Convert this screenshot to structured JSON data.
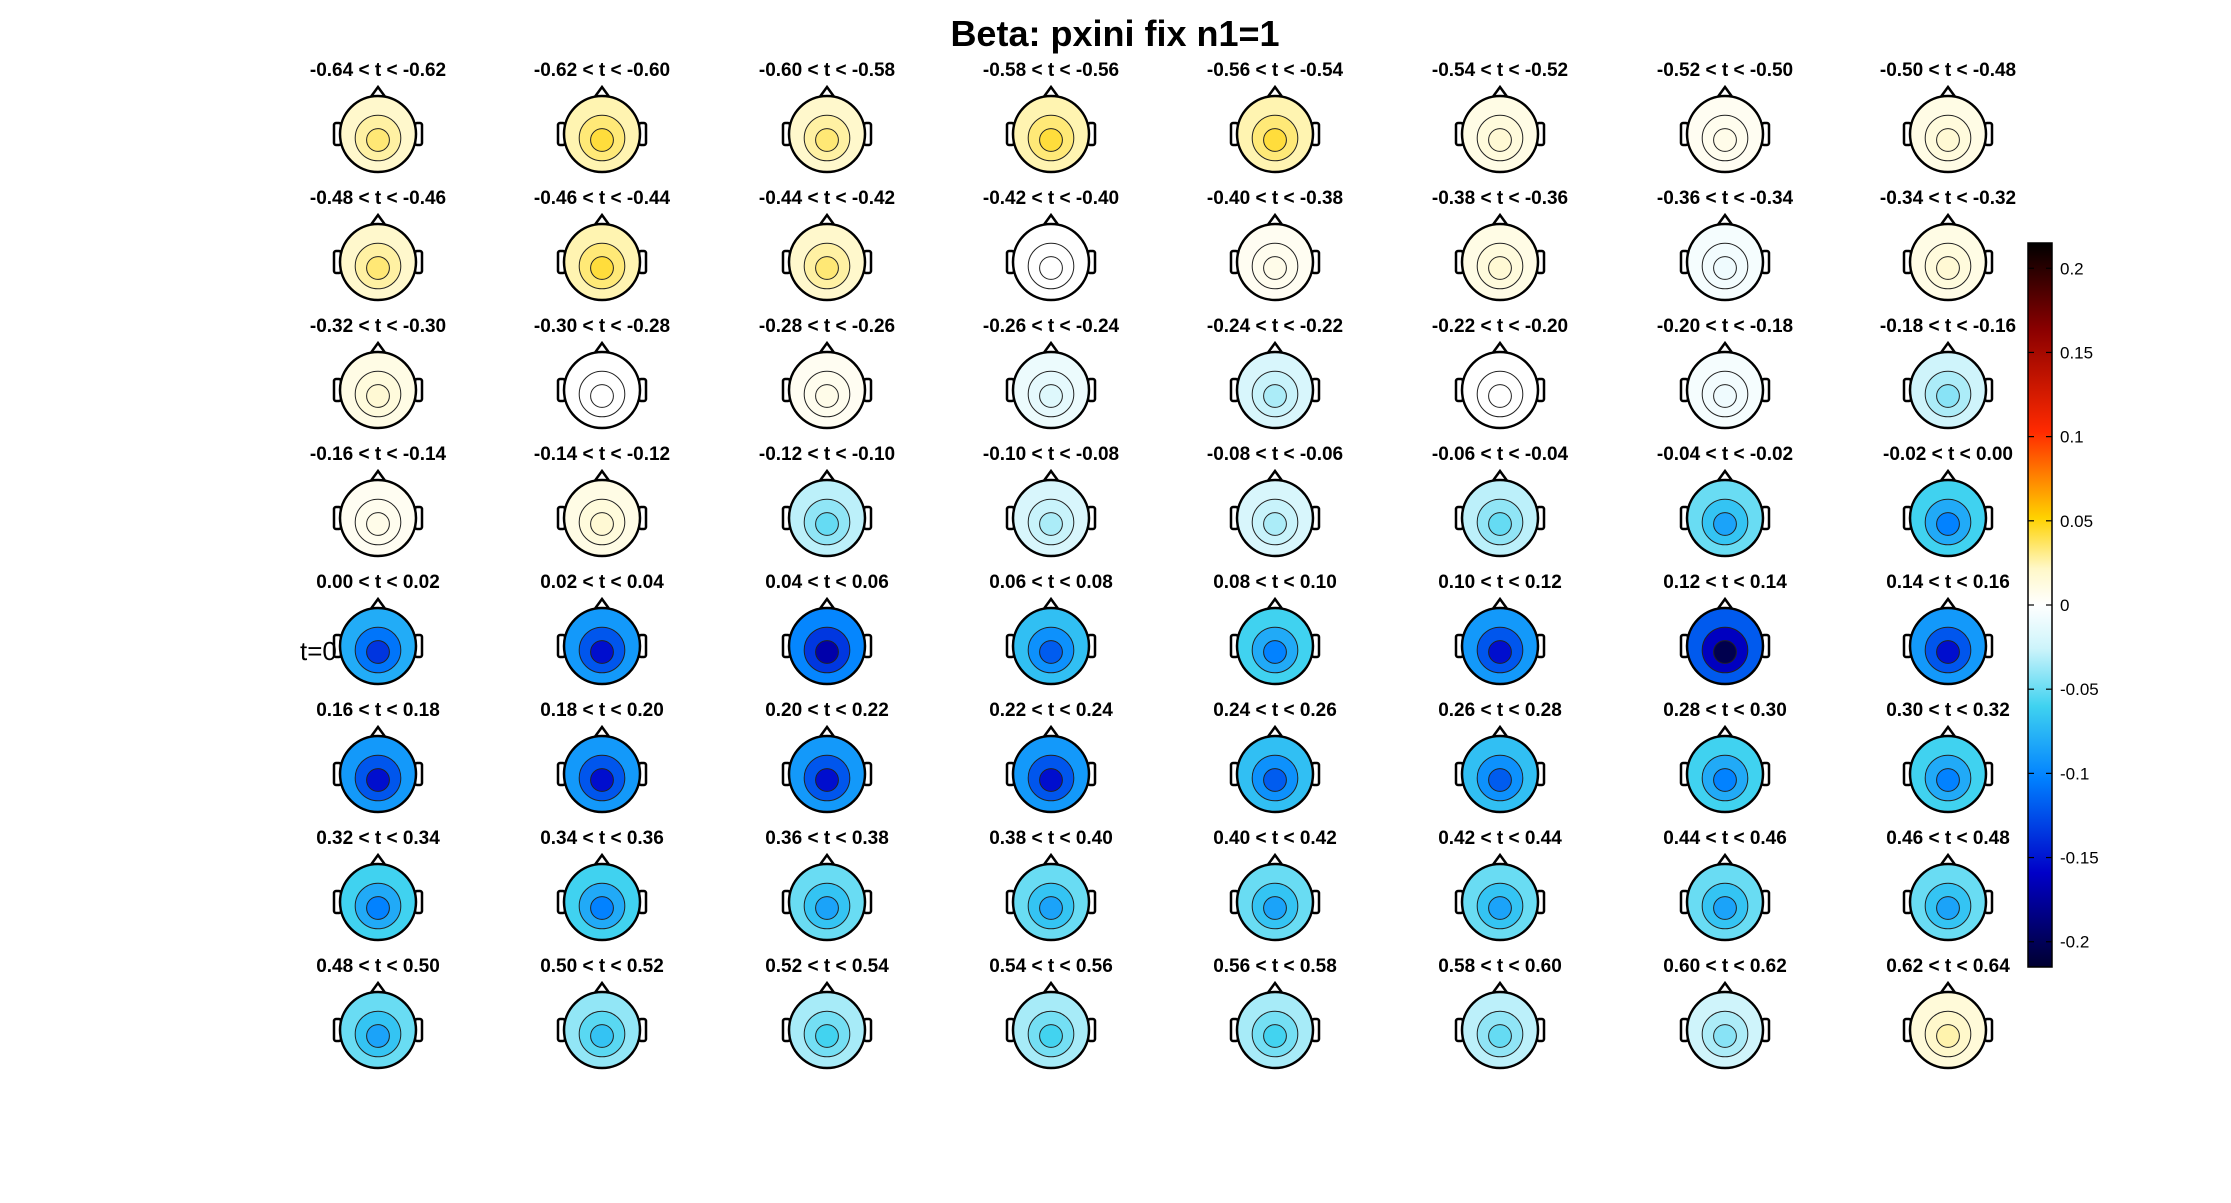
{
  "chart_data": {
    "type": "heatmap",
    "title": "Beta: pxini fix  n1=1",
    "subplot_titles": [
      "-0.64 < t < -0.62",
      "-0.62 < t < -0.60",
      "-0.60 < t < -0.58",
      "-0.58 < t < -0.56",
      "-0.56 < t < -0.54",
      "-0.54 < t < -0.52",
      "-0.52 < t < -0.50",
      "-0.50 < t < -0.48",
      "-0.48 < t < -0.46",
      "-0.46 < t < -0.44",
      "-0.44 < t < -0.42",
      "-0.42 < t < -0.40",
      "-0.40 < t < -0.38",
      "-0.38 < t < -0.36",
      "-0.36 < t < -0.34",
      "-0.34 < t < -0.32",
      "-0.32 < t < -0.30",
      "-0.30 < t < -0.28",
      "-0.28 < t < -0.26",
      "-0.26 < t < -0.24",
      "-0.24 < t < -0.22",
      "-0.22 < t < -0.20",
      "-0.20 < t < -0.18",
      "-0.18 < t < -0.16",
      "-0.16 < t < -0.14",
      "-0.14 < t < -0.12",
      "-0.12 < t < -0.10",
      "-0.10 < t < -0.08",
      "-0.08 < t < -0.06",
      "-0.06 < t < -0.04",
      "-0.04 < t < -0.02",
      "-0.02 < t < 0.00",
      "0.00 < t < 0.02",
      "0.02 < t < 0.04",
      "0.04 < t < 0.06",
      "0.06 < t < 0.08",
      "0.08 < t < 0.10",
      "0.10 < t < 0.12",
      "0.12 < t < 0.14",
      "0.14 < t < 0.16",
      "0.16 < t < 0.18",
      "0.18 < t < 0.20",
      "0.20 < t < 0.22",
      "0.22 < t < 0.24",
      "0.24 < t < 0.26",
      "0.26 < t < 0.28",
      "0.28 < t < 0.30",
      "0.30 < t < 0.32",
      "0.32 < t < 0.34",
      "0.34 < t < 0.36",
      "0.36 < t < 0.38",
      "0.38 < t < 0.40",
      "0.40 < t < 0.42",
      "0.42 < t < 0.44",
      "0.44 < t < 0.46",
      "0.46 < t < 0.48",
      "0.48 < t < 0.50",
      "0.50 < t < 0.52",
      "0.52 < t < 0.54",
      "0.54 < t < 0.56",
      "0.56 < t < 0.58",
      "0.58 < t < 0.60",
      "0.60 < t < 0.62",
      "0.62 < t < 0.64"
    ],
    "row_marker": {
      "row": 4,
      "label": "t=0"
    },
    "colorbar": {
      "range": [
        -0.215,
        0.215
      ],
      "ticks": [
        0.2,
        0.15,
        0.1,
        0.05,
        0,
        -0.05,
        -0.1,
        -0.15,
        -0.2
      ],
      "tick_labels": [
        "0.2",
        "0.15",
        "0.1",
        "0.05",
        "0",
        "-0.05",
        "-0.1",
        "-0.15",
        "-0.2"
      ],
      "colormap": "cold-hot (dark blue - cyan - white - yellow - red - black)"
    },
    "mean_amplitude": [
      0.02,
      0.025,
      0.02,
      0.025,
      0.025,
      0.01,
      0.005,
      0.01,
      0.02,
      0.025,
      0.02,
      0.0,
      0.005,
      0.01,
      -0.005,
      0.01,
      0.01,
      0.0,
      0.005,
      -0.01,
      -0.02,
      0.0,
      -0.005,
      -0.025,
      0.005,
      0.01,
      -0.03,
      -0.02,
      -0.02,
      -0.03,
      -0.05,
      -0.06,
      -0.08,
      -0.09,
      -0.1,
      -0.07,
      -0.06,
      -0.09,
      -0.12,
      -0.09,
      -0.09,
      -0.09,
      -0.09,
      -0.09,
      -0.07,
      -0.07,
      -0.06,
      -0.06,
      -0.06,
      -0.06,
      -0.05,
      -0.05,
      -0.05,
      -0.05,
      -0.05,
      -0.05,
      -0.05,
      -0.04,
      -0.035,
      -0.035,
      -0.035,
      -0.03,
      -0.025,
      0.015
    ]
  }
}
